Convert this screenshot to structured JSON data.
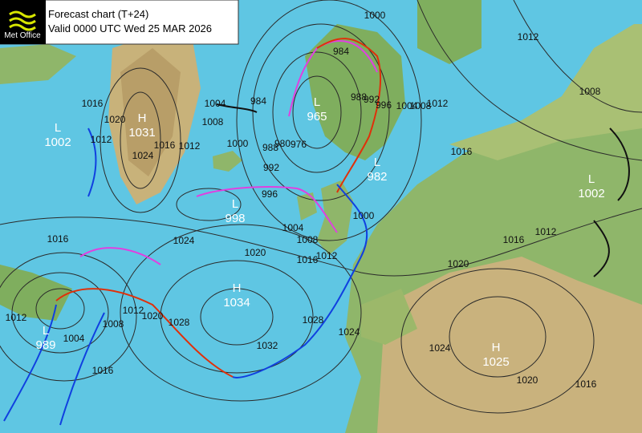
{
  "header": {
    "logo": "Met Office",
    "title": "Forecast chart (T+24)",
    "valid": "Valid 0000 UTC Wed 25 MAR 2026"
  },
  "centers": [
    {
      "kind": "L",
      "pressure": "1002"
    },
    {
      "kind": "H",
      "pressure": "1031"
    },
    {
      "kind": "L",
      "pressure": "965"
    },
    {
      "kind": "L",
      "pressure": "982"
    },
    {
      "kind": "L",
      "pressure": "998"
    },
    {
      "kind": "H",
      "pressure": "1034"
    },
    {
      "kind": "L",
      "pressure": "989"
    },
    {
      "kind": "H",
      "pressure": "1025"
    },
    {
      "kind": "L",
      "pressure": "1002"
    }
  ],
  "isobar_labels": [
    "1016",
    "1020",
    "1012",
    "1024",
    "1016",
    "1012",
    "1004",
    "1008",
    "1000",
    "984",
    "988",
    "992",
    "980",
    "976",
    "984",
    "988",
    "992",
    "996",
    "1000",
    "1004",
    "1008",
    "1012",
    "1012",
    "1008",
    "1016",
    "996",
    "1004",
    "1008",
    "1012",
    "1016",
    "1020",
    "1024",
    "1016",
    "1012",
    "1004",
    "1008",
    "1012",
    "1020",
    "1028",
    "1032",
    "1028",
    "1024",
    "1020",
    "1016",
    "1012",
    "1000",
    "1024",
    "1020",
    "1016",
    "1016"
  ]
}
